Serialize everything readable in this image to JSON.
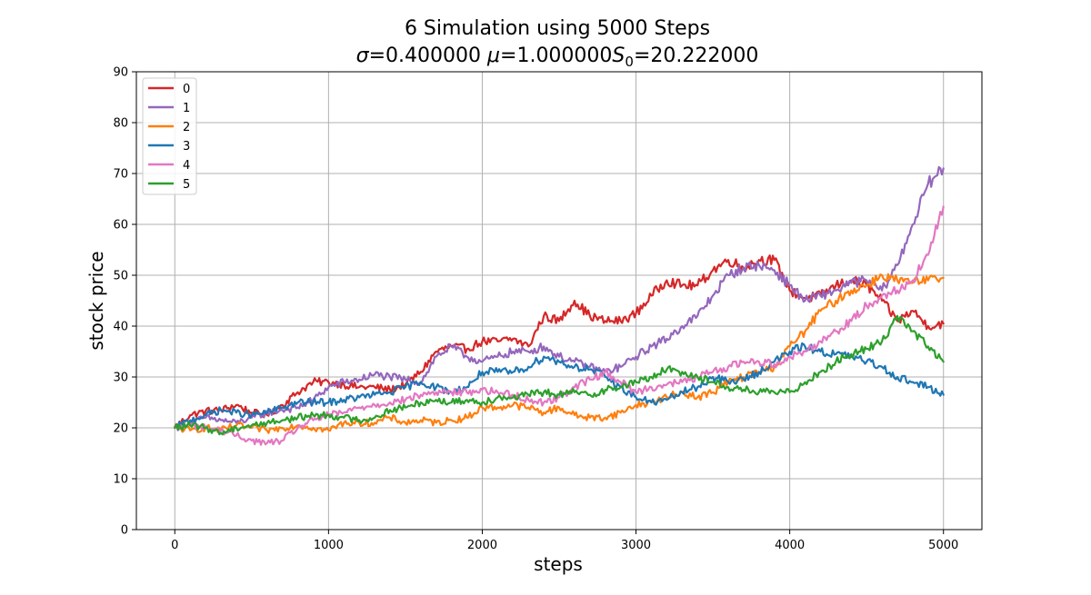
{
  "chart_data": {
    "type": "line",
    "title_line1": "6 Simulation using 5000 Steps",
    "title_line2": {
      "sigma_sym": "σ",
      "sigma_val": "=0.400000 ",
      "mu_sym": "μ",
      "mu_val": "=1.000000",
      "s_sym": "S",
      "s_sub": "0",
      "s_val": "=20.222000"
    },
    "xlabel": "steps",
    "ylabel": "stock price",
    "xlim": [
      -250,
      5250
    ],
    "ylim": [
      0,
      90
    ],
    "xticks": [
      0,
      1000,
      2000,
      3000,
      4000,
      5000
    ],
    "yticks": [
      0,
      10,
      20,
      30,
      40,
      50,
      60,
      70,
      80,
      90
    ],
    "grid": true,
    "legend_position": "upper-left",
    "series": [
      {
        "name": "0",
        "color": "#d62728",
        "x": [
          0,
          100,
          200,
          300,
          400,
          500,
          600,
          700,
          800,
          900,
          1000,
          1100,
          1200,
          1300,
          1400,
          1500,
          1600,
          1700,
          1800,
          1900,
          2000,
          2100,
          2200,
          2300,
          2400,
          2500,
          2600,
          2700,
          2800,
          2900,
          3000,
          3100,
          3200,
          3300,
          3400,
          3500,
          3600,
          3700,
          3800,
          3900,
          4000,
          4100,
          4200,
          4300,
          4400,
          4500,
          4600,
          4700,
          4800,
          4900,
          5000
        ],
        "y": [
          20.2,
          22.5,
          23.3,
          23.5,
          24.5,
          23,
          22.5,
          24.5,
          27,
          29,
          29,
          28.5,
          28,
          28,
          27.5,
          28.5,
          31,
          35,
          36,
          35.5,
          37,
          37,
          37.5,
          36,
          42,
          41,
          45,
          42,
          41,
          41,
          42.5,
          46,
          49,
          48,
          48,
          51,
          53,
          51.5,
          53,
          53,
          47,
          45.5,
          46,
          48,
          49,
          48,
          45,
          41,
          43,
          40,
          40.5
        ]
      },
      {
        "name": "1",
        "color": "#9467bd",
        "x": [
          0,
          100,
          200,
          300,
          400,
          500,
          600,
          700,
          800,
          900,
          1000,
          1100,
          1200,
          1300,
          1400,
          1500,
          1600,
          1700,
          1800,
          1900,
          2000,
          2100,
          2200,
          2300,
          2400,
          2500,
          2600,
          2700,
          2800,
          2900,
          3000,
          3100,
          3200,
          3300,
          3400,
          3500,
          3600,
          3700,
          3800,
          3900,
          4000,
          4100,
          4200,
          4300,
          4400,
          4500,
          4600,
          4700,
          4800,
          4900,
          5000
        ],
        "y": [
          20,
          21,
          22,
          21.5,
          21,
          22,
          23,
          23.5,
          24,
          25.5,
          28,
          29,
          29.5,
          30.5,
          30,
          29.5,
          29,
          34,
          36,
          34,
          33,
          34,
          35,
          35,
          36,
          34,
          33,
          32,
          31,
          32,
          34,
          36,
          37.5,
          40,
          42,
          46,
          50,
          51.5,
          52,
          51,
          48,
          45,
          46,
          47,
          48.5,
          49,
          47,
          52,
          60,
          68,
          71
        ]
      },
      {
        "name": "2",
        "color": "#ff7f0e",
        "x": [
          0,
          100,
          200,
          300,
          400,
          500,
          600,
          700,
          800,
          900,
          1000,
          1100,
          1200,
          1300,
          1400,
          1500,
          1600,
          1700,
          1800,
          1900,
          2000,
          2100,
          2200,
          2300,
          2400,
          2500,
          2600,
          2700,
          2800,
          2900,
          3000,
          3100,
          3200,
          3300,
          3400,
          3500,
          3600,
          3700,
          3800,
          3900,
          4000,
          4100,
          4200,
          4300,
          4400,
          4500,
          4600,
          4700,
          4800,
          4900,
          5000
        ],
        "y": [
          20,
          19.5,
          20,
          19.5,
          20.5,
          20,
          19.5,
          20,
          20.5,
          20,
          19.5,
          21,
          21,
          21,
          22,
          21,
          21.5,
          21,
          21.5,
          22,
          24,
          24,
          24.5,
          24,
          23,
          24,
          22.5,
          22,
          22,
          23,
          24.5,
          25,
          26,
          27,
          26,
          27,
          29,
          30,
          31,
          32,
          36,
          39,
          43,
          45,
          47,
          48,
          50,
          49,
          48.5,
          49,
          49.5
        ]
      },
      {
        "name": "3",
        "color": "#1f77b4",
        "x": [
          0,
          100,
          200,
          300,
          400,
          500,
          600,
          700,
          800,
          900,
          1000,
          1100,
          1200,
          1300,
          1400,
          1500,
          1600,
          1700,
          1800,
          1900,
          2000,
          2100,
          2200,
          2300,
          2400,
          2500,
          2600,
          2700,
          2800,
          2900,
          3000,
          3100,
          3200,
          3300,
          3400,
          3500,
          3600,
          3700,
          3800,
          3900,
          4000,
          4100,
          4200,
          4300,
          4400,
          4500,
          4600,
          4700,
          4800,
          4900,
          5000
        ],
        "y": [
          20,
          21.5,
          22.5,
          23.5,
          23,
          22.5,
          23,
          24,
          25,
          25,
          25,
          25.5,
          26,
          26.5,
          27,
          28,
          29,
          28,
          27,
          28,
          31,
          31,
          31,
          32,
          34,
          33,
          32,
          31.5,
          30,
          28,
          26,
          25,
          25.5,
          27,
          28,
          30,
          29,
          29.5,
          31,
          33,
          35,
          36,
          35,
          34.5,
          34,
          33,
          32,
          30,
          29,
          28,
          26.5
        ]
      },
      {
        "name": "4",
        "color": "#e377c2",
        "x": [
          0,
          100,
          200,
          300,
          400,
          500,
          600,
          700,
          800,
          900,
          1000,
          1100,
          1200,
          1300,
          1400,
          1500,
          1600,
          1700,
          1800,
          1900,
          2000,
          2100,
          2200,
          2300,
          2400,
          2500,
          2600,
          2700,
          2800,
          2900,
          3000,
          3100,
          3200,
          3300,
          3400,
          3500,
          3600,
          3700,
          3800,
          3900,
          4000,
          4100,
          4200,
          4300,
          4400,
          4500,
          4600,
          4700,
          4800,
          4900,
          5000
        ],
        "y": [
          20,
          20.5,
          20,
          19.5,
          18.5,
          17.5,
          17,
          17.5,
          20,
          21.5,
          22.5,
          23,
          24,
          24.5,
          25,
          25.5,
          26.5,
          27,
          27,
          27,
          27.5,
          27,
          26.5,
          25.5,
          25,
          26,
          28,
          29.5,
          31,
          29,
          27,
          28,
          28.5,
          29,
          30,
          31,
          32,
          33,
          33,
          32.5,
          34,
          35,
          37,
          39,
          41,
          44,
          46,
          47,
          49,
          54,
          63.5
        ]
      },
      {
        "name": "5",
        "color": "#2ca02c",
        "x": [
          0,
          100,
          200,
          300,
          400,
          500,
          600,
          700,
          800,
          900,
          1000,
          1100,
          1200,
          1300,
          1400,
          1500,
          1600,
          1700,
          1800,
          1900,
          2000,
          2100,
          2200,
          2300,
          2400,
          2500,
          2600,
          2700,
          2800,
          2900,
          3000,
          3100,
          3200,
          3300,
          3400,
          3500,
          3600,
          3700,
          3800,
          3900,
          4000,
          4100,
          4200,
          4300,
          4400,
          4500,
          4600,
          4700,
          4800,
          4900,
          5000
        ],
        "y": [
          20,
          20.5,
          20,
          19,
          20,
          20.5,
          21,
          21.5,
          22,
          22.5,
          22.5,
          22,
          21.5,
          22,
          23.5,
          24,
          25,
          25.5,
          25,
          25.5,
          25,
          26,
          26,
          26.5,
          27,
          26.5,
          27,
          26.5,
          27.5,
          28,
          29,
          30,
          31.5,
          31,
          30,
          29,
          28,
          27.5,
          27,
          27,
          27,
          29,
          31,
          33,
          34.5,
          35.5,
          37,
          42,
          39,
          36,
          33
        ]
      }
    ]
  }
}
